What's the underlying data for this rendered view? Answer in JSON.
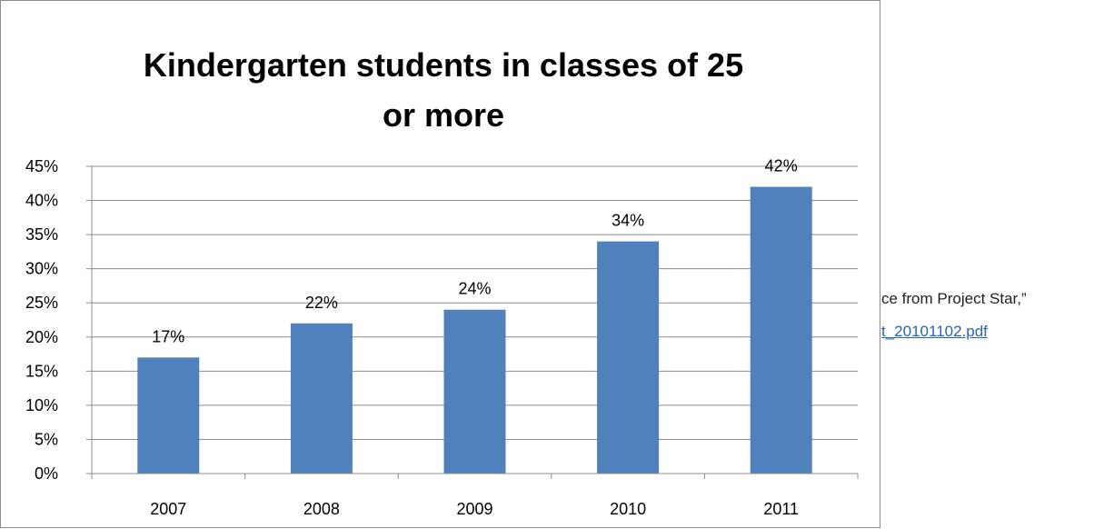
{
  "document": {
    "fragment_line_1": "ce from Project Star,”",
    "fragment_line_2": "t_20101102.pdf",
    "link_color": "#2a63b7"
  },
  "chart_data": {
    "type": "bar",
    "title_lines": [
      "Kindergarten students in classes of 25",
      "or more"
    ],
    "categories": [
      "2007",
      "2008",
      "2009",
      "2010",
      "2011"
    ],
    "series": [
      {
        "values": [
          17,
          22,
          24,
          34,
          42
        ],
        "color": "#4f81bd"
      }
    ],
    "data_labels": [
      "17%",
      "22%",
      "24%",
      "34%",
      "42%"
    ],
    "xlabel": "",
    "ylabel": "",
    "ylim": [
      0,
      45
    ],
    "yticks": [
      0,
      5,
      10,
      15,
      20,
      25,
      30,
      35,
      40,
      45
    ],
    "ytick_labels": [
      "0%",
      "5%",
      "10%",
      "15%",
      "20%",
      "25%",
      "30%",
      "35%",
      "40%",
      "45%"
    ],
    "grid": true,
    "legend": "none"
  }
}
